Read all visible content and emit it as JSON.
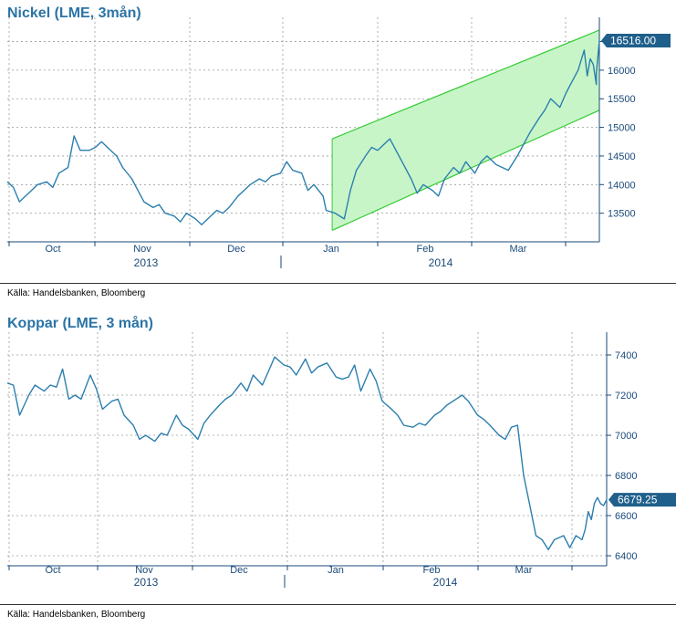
{
  "charts": [
    {
      "source": "Källa: Handelsbanken, Bloomberg"
    },
    {
      "source": "Källa: Handelsbanken, Bloomberg"
    }
  ],
  "chart_data": [
    {
      "type": "line",
      "title": "Nickel (LME, 3mån)",
      "xlabel": "",
      "ylabel": "",
      "x_range": [
        "2013-09-17",
        "2014-03-31"
      ],
      "ylim": [
        13000,
        16700
      ],
      "yticks": [
        13500,
        14000,
        14500,
        15000,
        15500,
        16000,
        16500
      ],
      "month_ticks": [
        "Oct",
        "Nov",
        "Dec",
        "Jan",
        "Feb",
        "Mar"
      ],
      "year_ticks": [
        "2013",
        "2014"
      ],
      "grid": true,
      "line_color": "#2b7fae",
      "last_value_label": "16516.00",
      "channel": {
        "color": "#33cc33",
        "fill": "#c8f5c8",
        "start_date": "2014-01-02",
        "end_date": "2014-03-31",
        "upper": [
          14800,
          16700
        ],
        "lower": [
          13200,
          15300
        ]
      },
      "series": [
        {
          "values": [
            [
              "2013-09-17",
              14050
            ],
            [
              "2013-09-19",
              13950
            ],
            [
              "2013-09-21",
              13700
            ],
            [
              "2013-09-24",
              13850
            ],
            [
              "2013-09-27",
              14000
            ],
            [
              "2013-09-30",
              14050
            ],
            [
              "2013-10-02",
              13950
            ],
            [
              "2013-10-04",
              14200
            ],
            [
              "2013-10-07",
              14300
            ],
            [
              "2013-10-09",
              14850
            ],
            [
              "2013-10-11",
              14600
            ],
            [
              "2013-10-14",
              14600
            ],
            [
              "2013-10-16",
              14650
            ],
            [
              "2013-10-18",
              14750
            ],
            [
              "2013-10-21",
              14600
            ],
            [
              "2013-10-23",
              14500
            ],
            [
              "2013-10-25",
              14300
            ],
            [
              "2013-10-28",
              14100
            ],
            [
              "2013-10-30",
              13900
            ],
            [
              "2013-11-01",
              13700
            ],
            [
              "2013-11-04",
              13600
            ],
            [
              "2013-11-06",
              13650
            ],
            [
              "2013-11-08",
              13500
            ],
            [
              "2013-11-11",
              13450
            ],
            [
              "2013-11-13",
              13350
            ],
            [
              "2013-11-15",
              13500
            ],
            [
              "2013-11-18",
              13400
            ],
            [
              "2013-11-20",
              13300
            ],
            [
              "2013-11-22",
              13400
            ],
            [
              "2013-11-25",
              13550
            ],
            [
              "2013-11-27",
              13500
            ],
            [
              "2013-11-29",
              13600
            ],
            [
              "2013-12-02",
              13800
            ],
            [
              "2013-12-04",
              13900
            ],
            [
              "2013-12-06",
              14000
            ],
            [
              "2013-12-09",
              14100
            ],
            [
              "2013-12-11",
              14050
            ],
            [
              "2013-12-13",
              14150
            ],
            [
              "2013-12-16",
              14200
            ],
            [
              "2013-12-18",
              14400
            ],
            [
              "2013-12-20",
              14250
            ],
            [
              "2013-12-23",
              14200
            ],
            [
              "2013-12-25",
              13900
            ],
            [
              "2013-12-27",
              14000
            ],
            [
              "2013-12-30",
              13800
            ],
            [
              "2013-12-31",
              13550
            ],
            [
              "2014-01-03",
              13500
            ],
            [
              "2014-01-06",
              13400
            ],
            [
              "2014-01-08",
              13900
            ],
            [
              "2014-01-10",
              14250
            ],
            [
              "2014-01-13",
              14500
            ],
            [
              "2014-01-15",
              14650
            ],
            [
              "2014-01-17",
              14600
            ],
            [
              "2014-01-19",
              14700
            ],
            [
              "2014-01-21",
              14800
            ],
            [
              "2014-01-23",
              14600
            ],
            [
              "2014-01-25",
              14400
            ],
            [
              "2014-01-28",
              14100
            ],
            [
              "2014-01-30",
              13850
            ],
            [
              "2014-02-01",
              14000
            ],
            [
              "2014-02-04",
              13900
            ],
            [
              "2014-02-06",
              13800
            ],
            [
              "2014-02-08",
              14100
            ],
            [
              "2014-02-11",
              14300
            ],
            [
              "2014-02-13",
              14200
            ],
            [
              "2014-02-15",
              14400
            ],
            [
              "2014-02-18",
              14200
            ],
            [
              "2014-02-20",
              14400
            ],
            [
              "2014-02-22",
              14500
            ],
            [
              "2014-02-25",
              14350
            ],
            [
              "2014-02-27",
              14300
            ],
            [
              "2014-03-01",
              14250
            ],
            [
              "2014-03-04",
              14500
            ],
            [
              "2014-03-06",
              14700
            ],
            [
              "2014-03-08",
              14900
            ],
            [
              "2014-03-11",
              15150
            ],
            [
              "2014-03-13",
              15300
            ],
            [
              "2014-03-15",
              15500
            ],
            [
              "2014-03-18",
              15350
            ],
            [
              "2014-03-20",
              15600
            ],
            [
              "2014-03-22",
              15800
            ],
            [
              "2014-03-24",
              16000
            ],
            [
              "2014-03-26",
              16350
            ],
            [
              "2014-03-27",
              15900
            ],
            [
              "2014-03-28",
              16200
            ],
            [
              "2014-03-29",
              16100
            ],
            [
              "2014-03-30",
              15750
            ],
            [
              "2014-03-30",
              15950
            ],
            [
              "2014-03-31",
              16516
            ]
          ]
        }
      ]
    },
    {
      "type": "line",
      "title": "Koppar (LME, 3 mån)",
      "xlabel": "",
      "ylabel": "",
      "x_range": [
        "2013-09-17",
        "2014-03-31"
      ],
      "ylim": [
        6350,
        7450
      ],
      "yticks": [
        6400,
        6600,
        6800,
        7000,
        7200,
        7400
      ],
      "month_ticks": [
        "Oct",
        "Nov",
        "Dec",
        "Jan",
        "Feb",
        "Mar"
      ],
      "year_ticks": [
        "2013",
        "2014"
      ],
      "grid": true,
      "line_color": "#2b7fae",
      "last_value_label": "6679.25",
      "series": [
        {
          "values": [
            [
              "2013-09-17",
              7260
            ],
            [
              "2013-09-19",
              7250
            ],
            [
              "2013-09-21",
              7100
            ],
            [
              "2013-09-24",
              7200
            ],
            [
              "2013-09-26",
              7250
            ],
            [
              "2013-09-29",
              7220
            ],
            [
              "2013-10-01",
              7250
            ],
            [
              "2013-10-03",
              7240
            ],
            [
              "2013-10-05",
              7330
            ],
            [
              "2013-10-07",
              7180
            ],
            [
              "2013-10-09",
              7200
            ],
            [
              "2013-10-11",
              7180
            ],
            [
              "2013-10-14",
              7300
            ],
            [
              "2013-10-16",
              7230
            ],
            [
              "2013-10-18",
              7130
            ],
            [
              "2013-10-21",
              7170
            ],
            [
              "2013-10-23",
              7180
            ],
            [
              "2013-10-25",
              7100
            ],
            [
              "2013-10-28",
              7050
            ],
            [
              "2013-10-30",
              6980
            ],
            [
              "2013-11-01",
              7000
            ],
            [
              "2013-11-04",
              6970
            ],
            [
              "2013-11-06",
              7010
            ],
            [
              "2013-11-08",
              7000
            ],
            [
              "2013-11-11",
              7100
            ],
            [
              "2013-11-13",
              7050
            ],
            [
              "2013-11-15",
              7030
            ],
            [
              "2013-11-18",
              6980
            ],
            [
              "2013-11-20",
              7060
            ],
            [
              "2013-11-22",
              7100
            ],
            [
              "2013-11-25",
              7150
            ],
            [
              "2013-11-27",
              7180
            ],
            [
              "2013-11-29",
              7200
            ],
            [
              "2013-12-02",
              7260
            ],
            [
              "2013-12-04",
              7220
            ],
            [
              "2013-12-06",
              7300
            ],
            [
              "2013-12-09",
              7250
            ],
            [
              "2013-12-11",
              7320
            ],
            [
              "2013-12-13",
              7390
            ],
            [
              "2013-12-16",
              7350
            ],
            [
              "2013-12-18",
              7340
            ],
            [
              "2013-12-20",
              7300
            ],
            [
              "2013-12-23",
              7380
            ],
            [
              "2013-12-25",
              7310
            ],
            [
              "2013-12-27",
              7340
            ],
            [
              "2013-12-30",
              7360
            ],
            [
              "2014-01-02",
              7290
            ],
            [
              "2014-01-04",
              7280
            ],
            [
              "2014-01-06",
              7290
            ],
            [
              "2014-01-08",
              7350
            ],
            [
              "2014-01-10",
              7220
            ],
            [
              "2014-01-13",
              7330
            ],
            [
              "2014-01-15",
              7270
            ],
            [
              "2014-01-17",
              7170
            ],
            [
              "2014-01-20",
              7130
            ],
            [
              "2014-01-22",
              7100
            ],
            [
              "2014-01-24",
              7050
            ],
            [
              "2014-01-27",
              7040
            ],
            [
              "2014-01-29",
              7060
            ],
            [
              "2014-01-31",
              7050
            ],
            [
              "2014-02-03",
              7100
            ],
            [
              "2014-02-05",
              7120
            ],
            [
              "2014-02-07",
              7150
            ],
            [
              "2014-02-10",
              7180
            ],
            [
              "2014-02-12",
              7200
            ],
            [
              "2014-02-14",
              7170
            ],
            [
              "2014-02-17",
              7100
            ],
            [
              "2014-02-19",
              7080
            ],
            [
              "2014-02-21",
              7050
            ],
            [
              "2014-02-24",
              7000
            ],
            [
              "2014-02-26",
              6980
            ],
            [
              "2014-02-28",
              7040
            ],
            [
              "2014-03-02",
              7050
            ],
            [
              "2014-03-04",
              6800
            ],
            [
              "2014-03-06",
              6650
            ],
            [
              "2014-03-08",
              6500
            ],
            [
              "2014-03-10",
              6480
            ],
            [
              "2014-03-12",
              6430
            ],
            [
              "2014-03-14",
              6480
            ],
            [
              "2014-03-17",
              6500
            ],
            [
              "2014-03-19",
              6440
            ],
            [
              "2014-03-21",
              6500
            ],
            [
              "2014-03-23",
              6480
            ],
            [
              "2014-03-24",
              6530
            ],
            [
              "2014-03-25",
              6620
            ],
            [
              "2014-03-26",
              6580
            ],
            [
              "2014-03-27",
              6660
            ],
            [
              "2014-03-28",
              6690
            ],
            [
              "2014-03-29",
              6660
            ],
            [
              "2014-03-30",
              6650
            ],
            [
              "2014-03-31",
              6679.25
            ]
          ]
        }
      ]
    }
  ]
}
